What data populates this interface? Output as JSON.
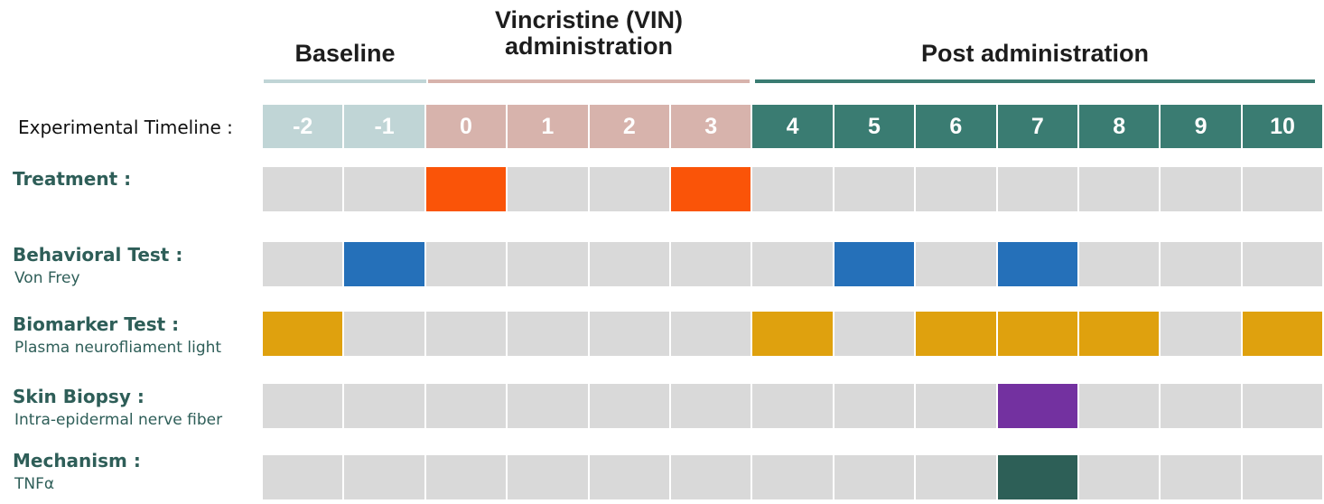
{
  "phases": [
    {
      "label": "Baseline",
      "color": "#c0d5d6"
    },
    {
      "label": "Vincristine (VIN)\nadministration",
      "color": "#d7b3ac"
    },
    {
      "label": "Post administration",
      "color": "#3a7c72"
    }
  ],
  "timeline_label": "Experimental Timeline :",
  "days": [
    "-2",
    "-1",
    "0",
    "1",
    "2",
    "3",
    "4",
    "5",
    "6",
    "7",
    "8",
    "9",
    "10"
  ],
  "day_phase": [
    0,
    0,
    1,
    1,
    1,
    1,
    2,
    2,
    2,
    2,
    2,
    2,
    2
  ],
  "empty_color": "#d9d9d9",
  "rows": [
    {
      "title": "Treatment :",
      "subtitle": "",
      "color": "#fa5408",
      "active": [
        "0",
        "3"
      ]
    },
    {
      "title": "Behavioral Test :",
      "subtitle": "Von Frey",
      "color": "#2570b9",
      "active": [
        "-1",
        "5",
        "7"
      ]
    },
    {
      "title": "Biomarker Test :",
      "subtitle": "Plasma neurofliament light",
      "color": "#dfa10e",
      "active": [
        "-2",
        "4",
        "6",
        "7",
        "8",
        "10"
      ]
    },
    {
      "title": "Skin Biopsy :",
      "subtitle": "Intra-epidermal nerve fiber",
      "color": "#7331a0",
      "active": [
        "7"
      ]
    },
    {
      "title": "Mechanism :",
      "subtitle": "TNFα",
      "color": "#2d5f57",
      "active": [
        "7"
      ]
    }
  ]
}
